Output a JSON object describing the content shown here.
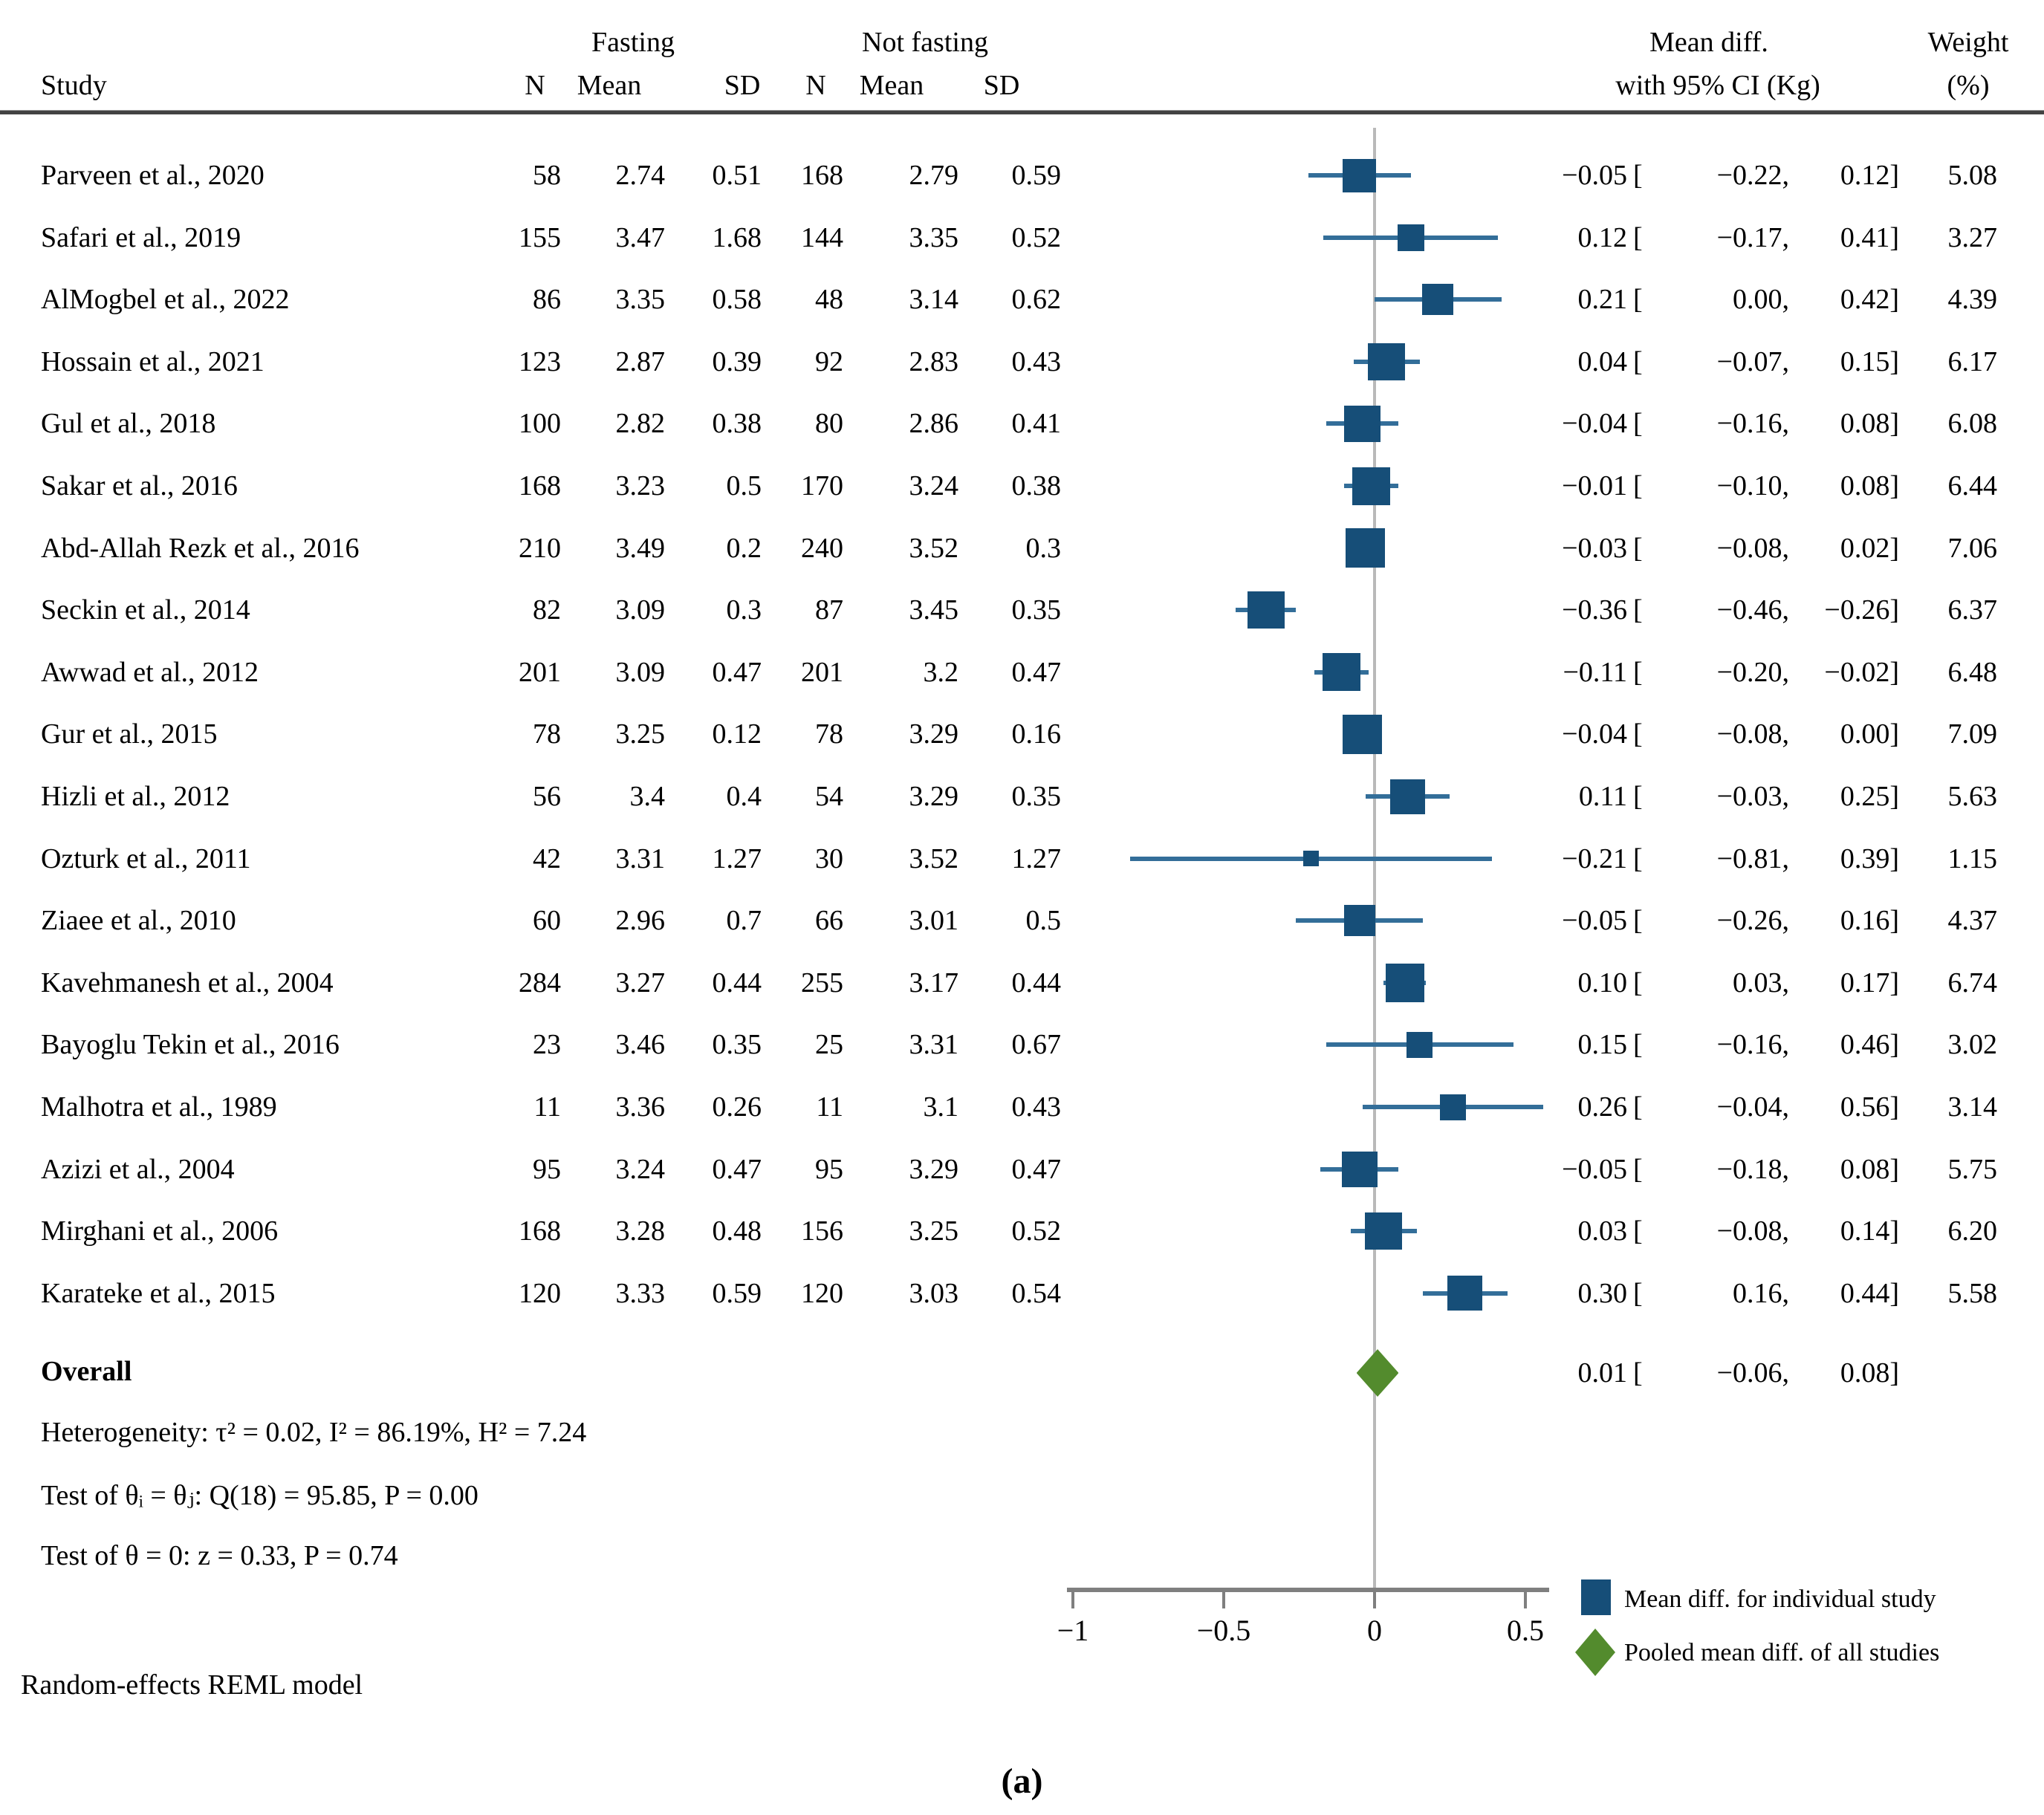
{
  "header": {
    "study": "Study",
    "fasting": "Fasting",
    "not_fasting": "Not fasting",
    "col_n": "N",
    "col_mean": "Mean",
    "col_sd": "SD",
    "effect_line1": "Mean diff.",
    "effect_line2": "with 95% CI (Kg)",
    "weight_line1": "Weight",
    "weight_line2": "(%)"
  },
  "chart_data": {
    "type": "forest",
    "effect_measure": "Mean difference (Kg)",
    "axis": {
      "xlim": [
        -1,
        0.6
      ],
      "ticks": [
        -1,
        -0.5,
        0,
        0.5
      ],
      "tick_labels": [
        "−1",
        "−0.5",
        "0",
        "0.5"
      ],
      "zero_reference_line": 0
    },
    "studies": [
      {
        "name": "Parveen et al., 2020",
        "n1": "58",
        "mean1": "2.74",
        "sd1": "0.51",
        "n2": "168",
        "mean2": "2.79",
        "sd2": "0.59",
        "est": -0.05,
        "lo": -0.22,
        "hi": 0.12,
        "weight": "5.08"
      },
      {
        "name": "Safari et al., 2019",
        "n1": "155",
        "mean1": "3.47",
        "sd1": "1.68",
        "n2": "144",
        "mean2": "3.35",
        "sd2": "0.52",
        "est": 0.12,
        "lo": -0.17,
        "hi": 0.41,
        "weight": "3.27"
      },
      {
        "name": "AlMogbel et al., 2022",
        "n1": "86",
        "mean1": "3.35",
        "sd1": "0.58",
        "n2": "48",
        "mean2": "3.14",
        "sd2": "0.62",
        "est": 0.21,
        "lo": 0.0,
        "hi": 0.42,
        "weight": "4.39"
      },
      {
        "name": "Hossain et al., 2021",
        "n1": "123",
        "mean1": "2.87",
        "sd1": "0.39",
        "n2": "92",
        "mean2": "2.83",
        "sd2": "0.43",
        "est": 0.04,
        "lo": -0.07,
        "hi": 0.15,
        "weight": "6.17"
      },
      {
        "name": "Gul et al., 2018",
        "n1": "100",
        "mean1": "2.82",
        "sd1": "0.38",
        "n2": "80",
        "mean2": "2.86",
        "sd2": "0.41",
        "est": -0.04,
        "lo": -0.16,
        "hi": 0.08,
        "weight": "6.08"
      },
      {
        "name": "Sakar et al., 2016",
        "n1": "168",
        "mean1": "3.23",
        "sd1": "0.5",
        "n2": "170",
        "mean2": "3.24",
        "sd2": "0.38",
        "est": -0.01,
        "lo": -0.1,
        "hi": 0.08,
        "weight": "6.44"
      },
      {
        "name": "Abd-Allah Rezk et al., 2016",
        "n1": "210",
        "mean1": "3.49",
        "sd1": "0.2",
        "n2": "240",
        "mean2": "3.52",
        "sd2": "0.3",
        "est": -0.03,
        "lo": -0.08,
        "hi": 0.02,
        "weight": "7.06"
      },
      {
        "name": "Seckin et al., 2014",
        "n1": "82",
        "mean1": "3.09",
        "sd1": "0.3",
        "n2": "87",
        "mean2": "3.45",
        "sd2": "0.35",
        "est": -0.36,
        "lo": -0.46,
        "hi": -0.26,
        "weight": "6.37"
      },
      {
        "name": "Awwad et al., 2012",
        "n1": "201",
        "mean1": "3.09",
        "sd1": "0.47",
        "n2": "201",
        "mean2": "3.2",
        "sd2": "0.47",
        "est": -0.11,
        "lo": -0.2,
        "hi": -0.02,
        "weight": "6.48"
      },
      {
        "name": "Gur et al., 2015",
        "n1": "78",
        "mean1": "3.25",
        "sd1": "0.12",
        "n2": "78",
        "mean2": "3.29",
        "sd2": "0.16",
        "est": -0.04,
        "lo": -0.08,
        "hi": 0.0,
        "weight": "7.09"
      },
      {
        "name": "Hizli et al., 2012",
        "n1": "56",
        "mean1": "3.4",
        "sd1": "0.4",
        "n2": "54",
        "mean2": "3.29",
        "sd2": "0.35",
        "est": 0.11,
        "lo": -0.03,
        "hi": 0.25,
        "weight": "5.63"
      },
      {
        "name": "Ozturk et al., 2011",
        "n1": "42",
        "mean1": "3.31",
        "sd1": "1.27",
        "n2": "30",
        "mean2": "3.52",
        "sd2": "1.27",
        "est": -0.21,
        "lo": -0.81,
        "hi": 0.39,
        "weight": "1.15"
      },
      {
        "name": "Ziaee et al., 2010",
        "n1": "60",
        "mean1": "2.96",
        "sd1": "0.7",
        "n2": "66",
        "mean2": "3.01",
        "sd2": "0.5",
        "est": -0.05,
        "lo": -0.26,
        "hi": 0.16,
        "weight": "4.37"
      },
      {
        "name": "Kavehmanesh et al., 2004",
        "n1": "284",
        "mean1": "3.27",
        "sd1": "0.44",
        "n2": "255",
        "mean2": "3.17",
        "sd2": "0.44",
        "est": 0.1,
        "lo": 0.03,
        "hi": 0.17,
        "weight": "6.74"
      },
      {
        "name": "Bayoglu Tekin et al., 2016",
        "n1": "23",
        "mean1": "3.46",
        "sd1": "0.35",
        "n2": "25",
        "mean2": "3.31",
        "sd2": "0.67",
        "est": 0.15,
        "lo": -0.16,
        "hi": 0.46,
        "weight": "3.02"
      },
      {
        "name": "Malhotra et al., 1989",
        "n1": "11",
        "mean1": "3.36",
        "sd1": "0.26",
        "n2": "11",
        "mean2": "3.1",
        "sd2": "0.43",
        "est": 0.26,
        "lo": -0.04,
        "hi": 0.56,
        "weight": "3.14"
      },
      {
        "name": "Azizi et al., 2004",
        "n1": "95",
        "mean1": "3.24",
        "sd1": "0.47",
        "n2": "95",
        "mean2": "3.29",
        "sd2": "0.47",
        "est": -0.05,
        "lo": -0.18,
        "hi": 0.08,
        "weight": "5.75"
      },
      {
        "name": "Mirghani et al., 2006",
        "n1": "168",
        "mean1": "3.28",
        "sd1": "0.48",
        "n2": "156",
        "mean2": "3.25",
        "sd2": "0.52",
        "est": 0.03,
        "lo": -0.08,
        "hi": 0.14,
        "weight": "6.20"
      },
      {
        "name": "Karateke et al., 2015",
        "n1": "120",
        "mean1": "3.33",
        "sd1": "0.59",
        "n2": "120",
        "mean2": "3.03",
        "sd2": "0.54",
        "est": 0.3,
        "lo": 0.16,
        "hi": 0.44,
        "weight": "5.58"
      }
    ],
    "overall": {
      "label": "Overall",
      "est": 0.01,
      "lo": -0.06,
      "hi": 0.08
    }
  },
  "legend": {
    "items": [
      {
        "label": "Mean diff. for individual study",
        "marker": "square"
      },
      {
        "label": "Pooled mean diff. of all studies",
        "marker": "diamond"
      }
    ]
  },
  "footer": {
    "heterogeneity": "Heterogeneity: τ² = 0.02, I² = 86.19%, H² = 7.24",
    "test_q": "Test of θᵢ = θⱼ: Q(18) = 95.85, P = 0.00",
    "test_z": "Test of θ = 0: z = 0.33, P = 0.74",
    "model_note": "Random-effects REML model",
    "caption": "(a)"
  },
  "colors": {
    "square": "#164e78",
    "whisker": "#336e99",
    "diamond": "#538b2d",
    "zero_line": "#b9b9b9",
    "axis": "#7f7f7f"
  }
}
